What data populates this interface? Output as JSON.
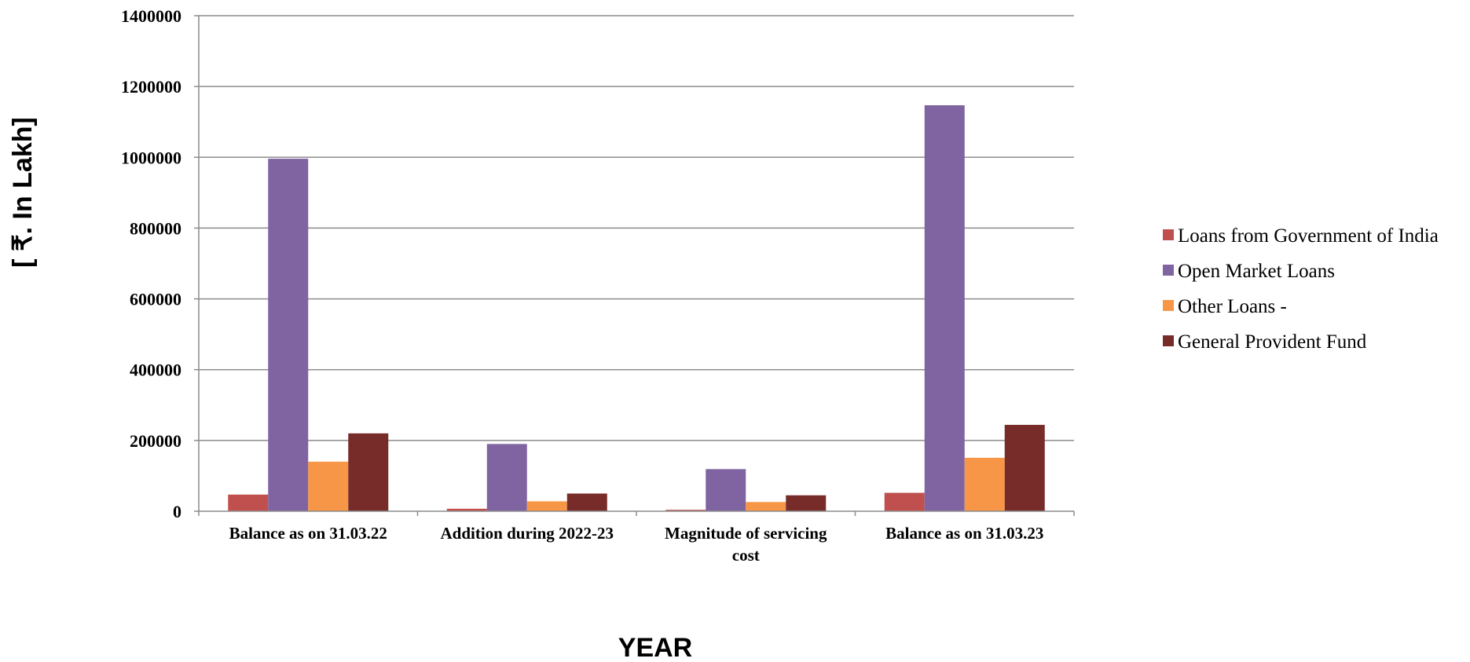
{
  "chart_data": {
    "type": "bar",
    "categories": [
      "Balance as on 31.03.22",
      "Addition during 2022-23",
      "Magnitude of servicing cost",
      "Balance as on 31.03.23"
    ],
    "series": [
      {
        "name": "Loans from Government of India",
        "color": "#c0504d",
        "values": [
          47000,
          7000,
          4000,
          52000
        ]
      },
      {
        "name": "Open Market Loans",
        "color": "#8064a2",
        "values": [
          996000,
          190000,
          119000,
          1147000
        ]
      },
      {
        "name": "Other Loans -",
        "color": "#f79646",
        "values": [
          140000,
          28000,
          26000,
          151000
        ]
      },
      {
        "name": "General Provident Fund",
        "color": "#772c2a",
        "values": [
          220000,
          50000,
          45000,
          244000
        ]
      }
    ],
    "xlabel": "YEAR",
    "ylabel": "[ ₹. In Lakh]",
    "ylim": [
      0,
      1400000
    ],
    "yticks": [
      0,
      200000,
      400000,
      600000,
      800000,
      1000000,
      1200000,
      1400000
    ],
    "grid": true,
    "legend_position": "right"
  }
}
